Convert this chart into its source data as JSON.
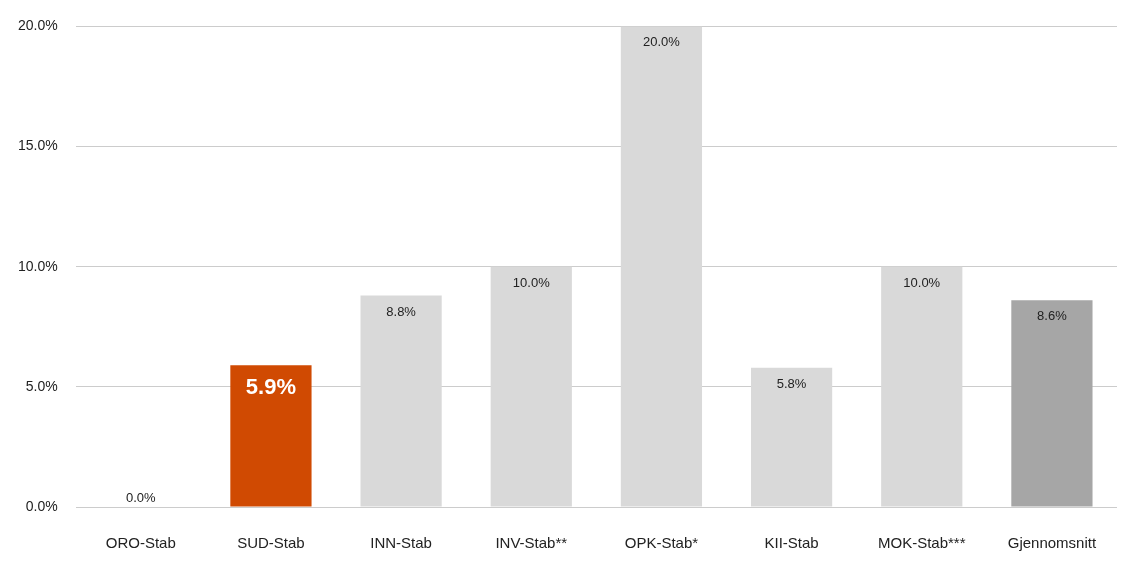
{
  "chart_data": {
    "type": "bar",
    "categories": [
      "ORO-Stab",
      "SUD-Stab",
      "INN-Stab",
      "INV-Stab**",
      "OPK-Stab*",
      "KII-Stab",
      "MOK-Stab***",
      "Gjennomsnitt"
    ],
    "values": [
      0.0,
      5.9,
      8.8,
      10.0,
      20.0,
      5.8,
      10.0,
      8.6
    ],
    "colors": [
      "#d9d9d9",
      "#d04a02",
      "#d9d9d9",
      "#d9d9d9",
      "#d9d9d9",
      "#d9d9d9",
      "#d9d9d9",
      "#a6a6a6"
    ],
    "value_labels": [
      "0.0%",
      "5.9%",
      "8.8%",
      "10.0%",
      "20.0%",
      "5.8%",
      "10.0%",
      "8.6%"
    ],
    "ylim": [
      0,
      20
    ],
    "yticks": [
      {
        "value": 0,
        "label": "0.0%"
      },
      {
        "value": 5,
        "label": "5.0%"
      },
      {
        "value": 10,
        "label": "10.0%"
      },
      {
        "value": 15,
        "label": "15.0%"
      },
      {
        "value": 20,
        "label": "20.0%"
      }
    ],
    "grid": "y",
    "legend": false
  }
}
